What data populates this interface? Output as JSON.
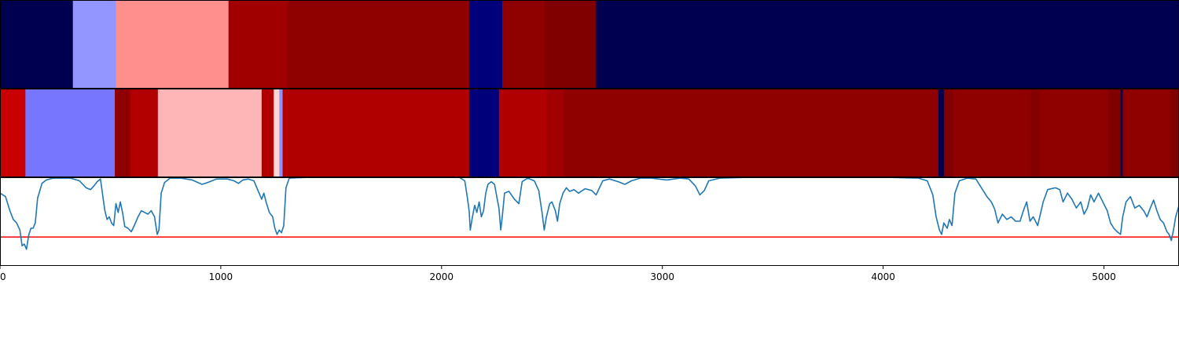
{
  "chart_data": {
    "type": "heatmap",
    "title": "",
    "xlabel": "",
    "ylabel": "",
    "xlim": [
      0,
      5340
    ],
    "x_ticks": [
      {
        "value": 0,
        "label": "0"
      },
      {
        "value": 1000,
        "label": "1000"
      },
      {
        "value": 2000,
        "label": "2000"
      },
      {
        "value": 3000,
        "label": "3000"
      },
      {
        "value": 4000,
        "label": "4000"
      },
      {
        "value": 5000,
        "label": "5000"
      }
    ],
    "rows": [
      {
        "segments": [
          {
            "start": 0,
            "end": 330,
            "color": "#000050"
          },
          {
            "start": 330,
            "end": 525,
            "color": "#9496ff"
          },
          {
            "start": 525,
            "end": 1035,
            "color": "#ff8f8c"
          },
          {
            "start": 1035,
            "end": 1300,
            "color": "#a00000"
          },
          {
            "start": 1300,
            "end": 2125,
            "color": "#8f0000"
          },
          {
            "start": 2125,
            "end": 2275,
            "color": "#00007b"
          },
          {
            "start": 2275,
            "end": 2465,
            "color": "#8f0000"
          },
          {
            "start": 2465,
            "end": 2700,
            "color": "#800000"
          },
          {
            "start": 2700,
            "end": 5340,
            "color": "#000050"
          }
        ]
      },
      {
        "segments": [
          {
            "start": 0,
            "end": 115,
            "color": "#c80000"
          },
          {
            "start": 115,
            "end": 520,
            "color": "#7676ff"
          },
          {
            "start": 520,
            "end": 590,
            "color": "#8f0000"
          },
          {
            "start": 590,
            "end": 715,
            "color": "#b20000"
          },
          {
            "start": 715,
            "end": 1185,
            "color": "#ffb6b6"
          },
          {
            "start": 1185,
            "end": 1240,
            "color": "#b20000"
          },
          {
            "start": 1240,
            "end": 1265,
            "color": "#ffd6d6"
          },
          {
            "start": 1265,
            "end": 1280,
            "color": "#9090ff"
          },
          {
            "start": 1280,
            "end": 2125,
            "color": "#b00000"
          },
          {
            "start": 2125,
            "end": 2260,
            "color": "#00007b"
          },
          {
            "start": 2260,
            "end": 2475,
            "color": "#b00000"
          },
          {
            "start": 2475,
            "end": 2555,
            "color": "#a00000"
          },
          {
            "start": 2555,
            "end": 4250,
            "color": "#8f0000"
          },
          {
            "start": 4250,
            "end": 4275,
            "color": "#000050"
          },
          {
            "start": 4275,
            "end": 4315,
            "color": "#800000"
          },
          {
            "start": 4315,
            "end": 4665,
            "color": "#8f0000"
          },
          {
            "start": 4665,
            "end": 4710,
            "color": "#850000"
          },
          {
            "start": 4710,
            "end": 5020,
            "color": "#8f0000"
          },
          {
            "start": 5020,
            "end": 5075,
            "color": "#800000"
          },
          {
            "start": 5075,
            "end": 5085,
            "color": "#000050"
          },
          {
            "start": 5085,
            "end": 5300,
            "color": "#8f0000"
          },
          {
            "start": 5300,
            "end": 5340,
            "color": "#800000"
          }
        ]
      }
    ],
    "line": {
      "color": "#1f77b4",
      "ylim": [
        0,
        1
      ],
      "threshold": 0.32,
      "threshold_color": "#ff0000",
      "points": [
        [
          0,
          0.82
        ],
        [
          25,
          0.78
        ],
        [
          45,
          0.62
        ],
        [
          60,
          0.52
        ],
        [
          75,
          0.48
        ],
        [
          90,
          0.4
        ],
        [
          100,
          0.22
        ],
        [
          110,
          0.24
        ],
        [
          120,
          0.18
        ],
        [
          130,
          0.34
        ],
        [
          140,
          0.42
        ],
        [
          150,
          0.42
        ],
        [
          160,
          0.48
        ],
        [
          170,
          0.76
        ],
        [
          190,
          0.93
        ],
        [
          210,
          0.97
        ],
        [
          240,
          0.99
        ],
        [
          280,
          0.99
        ],
        [
          320,
          0.99
        ],
        [
          360,
          0.96
        ],
        [
          390,
          0.88
        ],
        [
          410,
          0.86
        ],
        [
          425,
          0.9
        ],
        [
          440,
          0.95
        ],
        [
          455,
          0.98
        ],
        [
          465,
          0.8
        ],
        [
          475,
          0.62
        ],
        [
          485,
          0.52
        ],
        [
          495,
          0.55
        ],
        [
          505,
          0.48
        ],
        [
          515,
          0.45
        ],
        [
          525,
          0.7
        ],
        [
          535,
          0.6
        ],
        [
          545,
          0.72
        ],
        [
          555,
          0.6
        ],
        [
          565,
          0.44
        ],
        [
          580,
          0.42
        ],
        [
          595,
          0.38
        ],
        [
          610,
          0.46
        ],
        [
          625,
          0.55
        ],
        [
          640,
          0.62
        ],
        [
          655,
          0.6
        ],
        [
          670,
          0.58
        ],
        [
          685,
          0.62
        ],
        [
          700,
          0.55
        ],
        [
          712,
          0.35
        ],
        [
          720,
          0.4
        ],
        [
          730,
          0.82
        ],
        [
          745,
          0.94
        ],
        [
          770,
          0.99
        ],
        [
          820,
          0.99
        ],
        [
          870,
          0.97
        ],
        [
          915,
          0.92
        ],
        [
          940,
          0.94
        ],
        [
          980,
          0.98
        ],
        [
          1030,
          0.98
        ],
        [
          1060,
          0.96
        ],
        [
          1080,
          0.93
        ],
        [
          1100,
          0.97
        ],
        [
          1125,
          0.98
        ],
        [
          1150,
          0.96
        ],
        [
          1170,
          0.84
        ],
        [
          1185,
          0.75
        ],
        [
          1195,
          0.82
        ],
        [
          1205,
          0.72
        ],
        [
          1220,
          0.6
        ],
        [
          1235,
          0.55
        ],
        [
          1245,
          0.42
        ],
        [
          1255,
          0.35
        ],
        [
          1265,
          0.4
        ],
        [
          1275,
          0.37
        ],
        [
          1285,
          0.45
        ],
        [
          1295,
          0.88
        ],
        [
          1310,
          0.99
        ],
        [
          1400,
          1.0
        ],
        [
          1600,
          1.0
        ],
        [
          1800,
          1.0
        ],
        [
          2000,
          1.0
        ],
        [
          2080,
          1.0
        ],
        [
          2105,
          0.96
        ],
        [
          2115,
          0.8
        ],
        [
          2125,
          0.62
        ],
        [
          2130,
          0.4
        ],
        [
          2140,
          0.55
        ],
        [
          2150,
          0.68
        ],
        [
          2160,
          0.6
        ],
        [
          2170,
          0.72
        ],
        [
          2180,
          0.55
        ],
        [
          2190,
          0.62
        ],
        [
          2200,
          0.82
        ],
        [
          2210,
          0.92
        ],
        [
          2225,
          0.95
        ],
        [
          2240,
          0.92
        ],
        [
          2250,
          0.78
        ],
        [
          2260,
          0.65
        ],
        [
          2268,
          0.4
        ],
        [
          2275,
          0.55
        ],
        [
          2285,
          0.82
        ],
        [
          2305,
          0.84
        ],
        [
          2330,
          0.75
        ],
        [
          2350,
          0.7
        ],
        [
          2365,
          0.95
        ],
        [
          2390,
          0.99
        ],
        [
          2420,
          0.96
        ],
        [
          2440,
          0.85
        ],
        [
          2455,
          0.6
        ],
        [
          2465,
          0.4
        ],
        [
          2475,
          0.55
        ],
        [
          2490,
          0.7
        ],
        [
          2500,
          0.72
        ],
        [
          2515,
          0.62
        ],
        [
          2525,
          0.5
        ],
        [
          2535,
          0.7
        ],
        [
          2550,
          0.82
        ],
        [
          2565,
          0.88
        ],
        [
          2580,
          0.84
        ],
        [
          2600,
          0.86
        ],
        [
          2620,
          0.82
        ],
        [
          2650,
          0.87
        ],
        [
          2680,
          0.85
        ],
        [
          2700,
          0.8
        ],
        [
          2730,
          0.96
        ],
        [
          2760,
          0.98
        ],
        [
          2800,
          0.95
        ],
        [
          2830,
          0.92
        ],
        [
          2860,
          0.96
        ],
        [
          2900,
          0.99
        ],
        [
          2950,
          0.99
        ],
        [
          3020,
          0.97
        ],
        [
          3080,
          0.99
        ],
        [
          3120,
          0.98
        ],
        [
          3150,
          0.9
        ],
        [
          3170,
          0.8
        ],
        [
          3190,
          0.85
        ],
        [
          3210,
          0.96
        ],
        [
          3260,
          0.99
        ],
        [
          3400,
          1.0
        ],
        [
          3700,
          1.0
        ],
        [
          4000,
          1.0
        ],
        [
          4160,
          0.99
        ],
        [
          4200,
          0.96
        ],
        [
          4225,
          0.8
        ],
        [
          4240,
          0.55
        ],
        [
          4255,
          0.4
        ],
        [
          4265,
          0.35
        ],
        [
          4275,
          0.48
        ],
        [
          4290,
          0.42
        ],
        [
          4300,
          0.52
        ],
        [
          4312,
          0.45
        ],
        [
          4325,
          0.82
        ],
        [
          4345,
          0.96
        ],
        [
          4380,
          0.99
        ],
        [
          4420,
          0.98
        ],
        [
          4445,
          0.88
        ],
        [
          4470,
          0.78
        ],
        [
          4490,
          0.72
        ],
        [
          4505,
          0.64
        ],
        [
          4520,
          0.48
        ],
        [
          4540,
          0.58
        ],
        [
          4560,
          0.52
        ],
        [
          4580,
          0.55
        ],
        [
          4600,
          0.5
        ],
        [
          4620,
          0.5
        ],
        [
          4635,
          0.62
        ],
        [
          4650,
          0.72
        ],
        [
          4665,
          0.5
        ],
        [
          4680,
          0.55
        ],
        [
          4700,
          0.45
        ],
        [
          4725,
          0.72
        ],
        [
          4745,
          0.86
        ],
        [
          4780,
          0.88
        ],
        [
          4800,
          0.86
        ],
        [
          4815,
          0.72
        ],
        [
          4835,
          0.82
        ],
        [
          4855,
          0.75
        ],
        [
          4875,
          0.65
        ],
        [
          4895,
          0.72
        ],
        [
          4910,
          0.58
        ],
        [
          4925,
          0.65
        ],
        [
          4940,
          0.8
        ],
        [
          4955,
          0.72
        ],
        [
          4975,
          0.82
        ],
        [
          4995,
          0.72
        ],
        [
          5015,
          0.62
        ],
        [
          5030,
          0.48
        ],
        [
          5045,
          0.42
        ],
        [
          5060,
          0.38
        ],
        [
          5075,
          0.35
        ],
        [
          5085,
          0.55
        ],
        [
          5100,
          0.72
        ],
        [
          5120,
          0.78
        ],
        [
          5140,
          0.65
        ],
        [
          5160,
          0.68
        ],
        [
          5180,
          0.62
        ],
        [
          5195,
          0.55
        ],
        [
          5210,
          0.65
        ],
        [
          5225,
          0.74
        ],
        [
          5240,
          0.62
        ],
        [
          5255,
          0.52
        ],
        [
          5270,
          0.48
        ],
        [
          5285,
          0.38
        ],
        [
          5295,
          0.35
        ],
        [
          5305,
          0.28
        ],
        [
          5315,
          0.4
        ],
        [
          5325,
          0.55
        ],
        [
          5340,
          0.68
        ]
      ]
    }
  }
}
